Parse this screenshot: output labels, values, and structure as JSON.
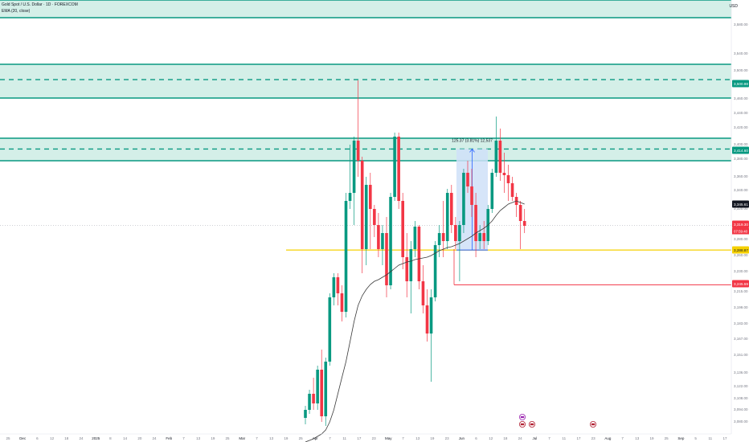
{
  "header": {
    "title": "Gold Spot / U.S. Dollar · 1D · FOREXCOM",
    "indicator": "EMA (20, close)",
    "currency": "USD"
  },
  "colors": {
    "up": "#089981",
    "down": "#f23645",
    "zone_fill": "#d4efe8",
    "zone_line": "#089981",
    "support": "#f5d000",
    "resistance_red": "#f23645",
    "ema": "#3b3b3b",
    "measure_fill": "#cfe0f8",
    "measure_line": "#2962ff"
  },
  "price_axis": {
    "ticks": [
      "3,580.00",
      "3,540.00",
      "3,500.00",
      "3,460.00",
      "3,440.00",
      "3,420.00",
      "3,400.00",
      "3,380.00",
      "3,360.00",
      "3,340.00",
      "3,320.00",
      "3,300.00",
      "3,280.00",
      "3,260.00",
      "3,230.00",
      "3,215.00",
      "3,199.00",
      "3,183.00",
      "3,167.00",
      "3,151.00",
      "3,136.00",
      "3,122.00",
      "3,108.00",
      "3,094.00",
      "3,080.00"
    ],
    "labels": [
      {
        "text": "3,500.98",
        "color": "#089981"
      },
      {
        "text": "3,414.60",
        "color": "#089981"
      },
      {
        "text": "3,345.61",
        "color": "#131722"
      },
      {
        "text": "3,319.30",
        "color": "#f23645"
      },
      {
        "text": "3,288.87",
        "color": "#f5d000"
      },
      {
        "text": "3,245.59",
        "color": "#f23645"
      }
    ],
    "countdown": "07:59:40"
  },
  "time_axis": {
    "labels": [
      "25",
      "Dec",
      "6",
      "12",
      "18",
      "24",
      "2025",
      "8",
      "14",
      "20",
      "24",
      "Feb",
      "7",
      "13",
      "19",
      "25",
      "Mar",
      "7",
      "13",
      "19",
      "25",
      "Apr",
      "7",
      "11",
      "17",
      "23",
      "May",
      "7",
      "13",
      "19",
      "23",
      "Jun",
      "6",
      "12",
      "18",
      "24",
      "Jul",
      "7",
      "11",
      "17",
      "23",
      "Aug",
      "7",
      "13",
      "19",
      "25",
      "Sep",
      "5",
      "11",
      "17"
    ]
  },
  "measure": {
    "label": "125.37 (3.81%) 12,537"
  },
  "chart_data": {
    "type": "candlestick",
    "title": "Gold Spot / U.S. Dollar · 1D · FOREXCOM",
    "ylabel": "USD",
    "ylim": [
      3060,
      3600
    ],
    "series": [
      {
        "name": "Gold Spot / U.S. Dollar",
        "ohlc": [
          [
            3080,
            3095,
            3072,
            3090
          ],
          [
            3090,
            3115,
            3085,
            3110
          ],
          [
            3110,
            3130,
            3090,
            3098
          ],
          [
            3098,
            3145,
            3090,
            3140
          ],
          [
            3140,
            3165,
            3075,
            3082
          ],
          [
            3082,
            3155,
            3070,
            3150
          ],
          [
            3150,
            3235,
            3145,
            3230
          ],
          [
            3230,
            3260,
            3220,
            3255
          ],
          [
            3255,
            3260,
            3220,
            3235
          ],
          [
            3235,
            3245,
            3200,
            3212
          ],
          [
            3212,
            3360,
            3205,
            3350
          ],
          [
            3350,
            3420,
            3340,
            3360
          ],
          [
            3360,
            3430,
            3320,
            3425
          ],
          [
            3425,
            3500,
            3380,
            3400
          ],
          [
            3400,
            3405,
            3260,
            3290
          ],
          [
            3290,
            3380,
            3270,
            3370
          ],
          [
            3370,
            3385,
            3290,
            3340
          ],
          [
            3340,
            3345,
            3305,
            3320
          ],
          [
            3320,
            3335,
            3280,
            3290
          ],
          [
            3290,
            3320,
            3270,
            3310
          ],
          [
            3310,
            3330,
            3230,
            3245
          ],
          [
            3245,
            3360,
            3240,
            3355
          ],
          [
            3355,
            3435,
            3350,
            3430
          ],
          [
            3430,
            3435,
            3340,
            3350
          ],
          [
            3350,
            3360,
            3265,
            3280
          ],
          [
            3280,
            3310,
            3230,
            3250
          ],
          [
            3250,
            3300,
            3210,
            3290
          ],
          [
            3290,
            3325,
            3280,
            3318
          ],
          [
            3318,
            3320,
            3240,
            3250
          ],
          [
            3250,
            3270,
            3210,
            3220
          ],
          [
            3220,
            3240,
            3175,
            3185
          ],
          [
            3185,
            3240,
            3125,
            3230
          ],
          [
            3230,
            3300,
            3225,
            3295
          ],
          [
            3295,
            3320,
            3280,
            3310
          ],
          [
            3310,
            3350,
            3280,
            3300
          ],
          [
            3300,
            3365,
            3290,
            3360
          ],
          [
            3360,
            3370,
            3310,
            3320
          ],
          [
            3320,
            3330,
            3290,
            3300
          ],
          [
            3300,
            3325,
            3250,
            3320
          ],
          [
            3320,
            3390,
            3310,
            3385
          ],
          [
            3385,
            3400,
            3360,
            3368
          ],
          [
            3368,
            3390,
            3330,
            3345
          ],
          [
            3345,
            3360,
            3280,
            3300
          ],
          [
            3300,
            3320,
            3290,
            3310
          ],
          [
            3310,
            3325,
            3290,
            3300
          ],
          [
            3300,
            3345,
            3295,
            3340
          ],
          [
            3340,
            3390,
            3335,
            3385
          ],
          [
            3385,
            3455,
            3380,
            3425
          ],
          [
            3425,
            3440,
            3375,
            3385
          ],
          [
            3385,
            3410,
            3360,
            3382
          ],
          [
            3382,
            3395,
            3350,
            3372
          ],
          [
            3372,
            3380,
            3350,
            3355
          ],
          [
            3355,
            3360,
            3330,
            3345
          ],
          [
            3345,
            3350,
            3290,
            3325
          ],
          [
            3325,
            3340,
            3310,
            3319
          ]
        ]
      },
      {
        "name": "EMA (20, close)",
        "values": [
          3050,
          3052,
          3054,
          3057,
          3060,
          3065,
          3075,
          3090,
          3110,
          3130,
          3150,
          3175,
          3200,
          3220,
          3232,
          3240,
          3246,
          3250,
          3252,
          3255,
          3258,
          3262,
          3266,
          3270,
          3272,
          3274,
          3275,
          3277,
          3278,
          3279,
          3280,
          3282,
          3285,
          3288,
          3290,
          3292,
          3293,
          3295,
          3297,
          3300,
          3303,
          3306,
          3310,
          3313,
          3316,
          3320,
          3325,
          3332,
          3338,
          3342,
          3346,
          3348,
          3350,
          3348,
          3346
        ]
      }
    ],
    "zones": [
      {
        "top": 3600,
        "bottom": 3578
      },
      {
        "top": 3520,
        "bottom": 3478,
        "mid": 3500.98
      },
      {
        "top": 3428,
        "bottom": 3400,
        "mid": 3414.6
      }
    ],
    "levels": [
      {
        "value": 3288.87,
        "color": "#f5d000"
      },
      {
        "value": 3245.59,
        "color": "#f23645"
      }
    ],
    "current_price": 3319.3
  }
}
